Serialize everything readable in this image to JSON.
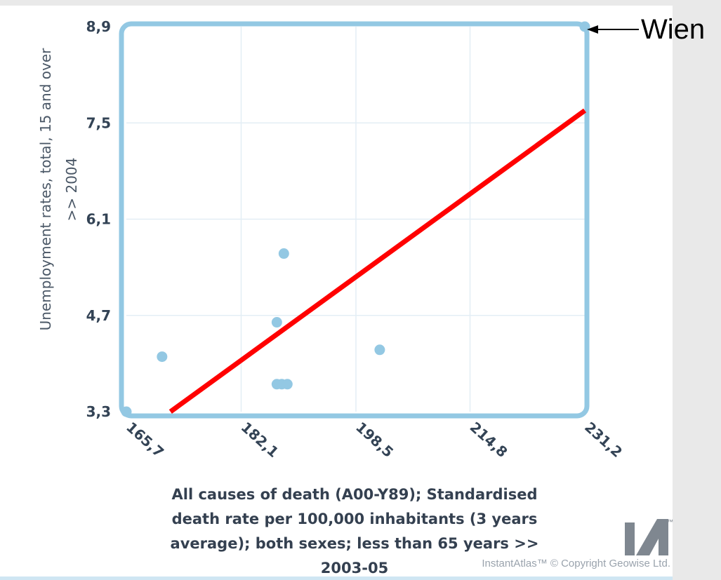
{
  "chart_data": {
    "type": "scatter",
    "title": "",
    "xlabel": "All causes of death (A00-Y89); Standardised death rate per 100,000 inhabitants (3 years average); both sexes; less than 65 years >> 2003-05",
    "xlabel_lines": [
      "All causes of death (A00-Y89); Standardised",
      "death rate per 100,000 inhabitants (3 years",
      "average); both sexes; less than 65 years >>",
      "2003-05"
    ],
    "ylabel": "Unemployment rates, total, 15 and over >> 2004",
    "ylabel_lines": [
      "Unemployment rates, total, 15 and over",
      ">> 2004"
    ],
    "xlim": [
      165.7,
      231.2
    ],
    "ylim": [
      3.3,
      8.9
    ],
    "x_ticks": [
      165.7,
      182.1,
      198.5,
      214.8,
      231.2
    ],
    "y_ticks": [
      3.3,
      4.7,
      6.1,
      7.5,
      8.9
    ],
    "x_tick_labels": [
      "165,7",
      "182,1",
      "198,5",
      "214,8",
      "231,2"
    ],
    "y_tick_labels": [
      "3,3",
      "4,7",
      "6,1",
      "7,5",
      "8,9"
    ],
    "grid": true,
    "points": [
      {
        "x": 165.7,
        "y": 3.3
      },
      {
        "x": 170.8,
        "y": 4.1
      },
      {
        "x": 188.2,
        "y": 5.6
      },
      {
        "x": 187.2,
        "y": 4.6
      },
      {
        "x": 201.9,
        "y": 4.2
      },
      {
        "x": 187.2,
        "y": 3.7
      },
      {
        "x": 187.9,
        "y": 3.7
      },
      {
        "x": 188.7,
        "y": 3.7
      },
      {
        "x": 231.2,
        "y": 8.9
      }
    ],
    "trendline": {
      "x": [
        172.0,
        231.2
      ],
      "y": [
        3.3,
        7.68
      ],
      "color": "#ff0000"
    },
    "point_color": "#93c8e3",
    "frame_color": "#93c8e3",
    "annotation": {
      "text": "Wien",
      "target": {
        "x": 231.2,
        "y": 8.9
      }
    }
  },
  "credit": "InstantAtlas™ © Copyright Geowise Ltd.",
  "logo": {
    "text": "IA",
    "tm": "™"
  }
}
